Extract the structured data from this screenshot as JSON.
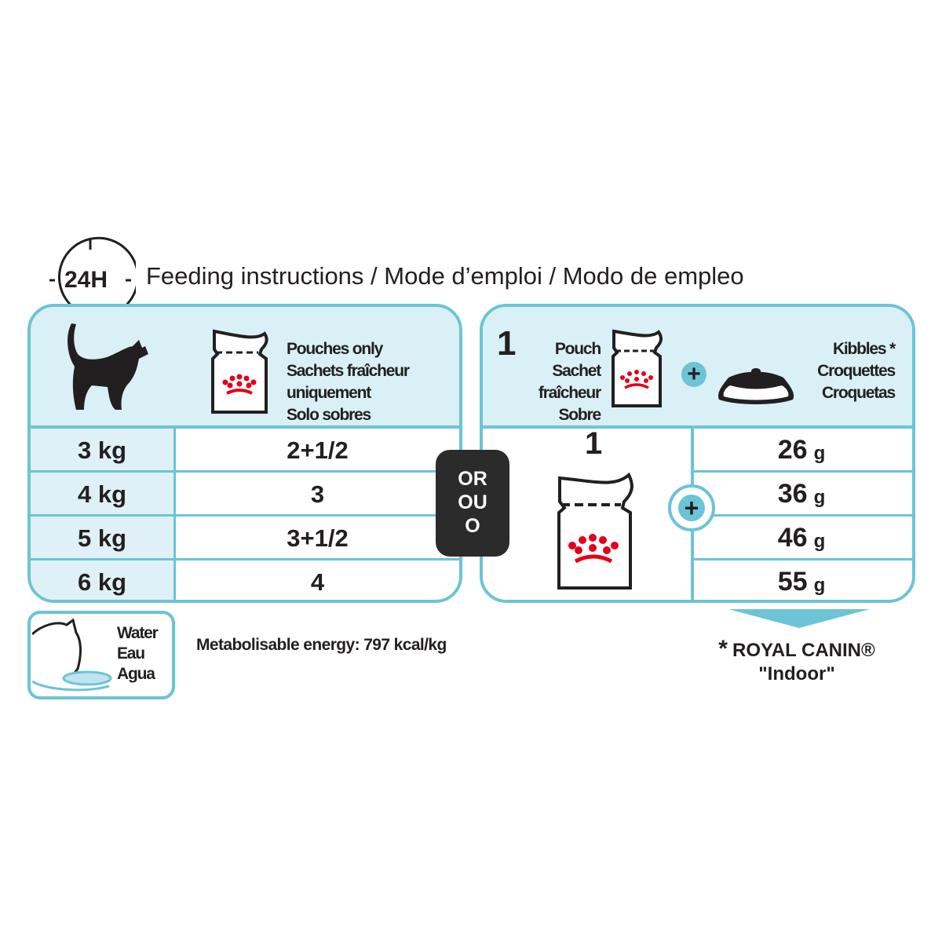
{
  "header": {
    "clock_label": "24H",
    "title": "Feeding instructions / Mode d’emploi / Modo de empleo"
  },
  "pouch_only_table": {
    "header_lines": [
      "Pouches only",
      "Sachets fraîcheur uniquement",
      "Solo sobres"
    ],
    "rows": [
      {
        "weight": "3 kg",
        "pouches": "2+1/2"
      },
      {
        "weight": "4 kg",
        "pouches": "3"
      },
      {
        "weight": "5 kg",
        "pouches": "3+1/2"
      },
      {
        "weight": "6 kg",
        "pouches": "4"
      }
    ]
  },
  "or_badge": {
    "lines": [
      "OR",
      "OU",
      "O"
    ]
  },
  "mixed_table": {
    "pouch_count": "1",
    "pouch_lines": [
      "Pouch",
      "Sachet fraîcheur",
      "Sobre"
    ],
    "kibble_lines": [
      "Kibbles *",
      "Croquettes",
      "Croquetas"
    ],
    "pouch_amount": "1",
    "unit": "g",
    "kibble_grams": [
      "26",
      "36",
      "46",
      "55"
    ]
  },
  "water": {
    "lines": [
      "Water",
      "Eau",
      "Agua"
    ]
  },
  "energy": "Metabolisable energy: 797 kcal/kg",
  "footnote": {
    "asterisk": "*",
    "brand": "ROYAL CANIN®",
    "product": "\"Indoor\""
  },
  "colors": {
    "accent": "#6cc4d6",
    "header_bg": "#d9f0f6",
    "brand_red": "#e2001a",
    "badge": "#2b2b2b"
  }
}
